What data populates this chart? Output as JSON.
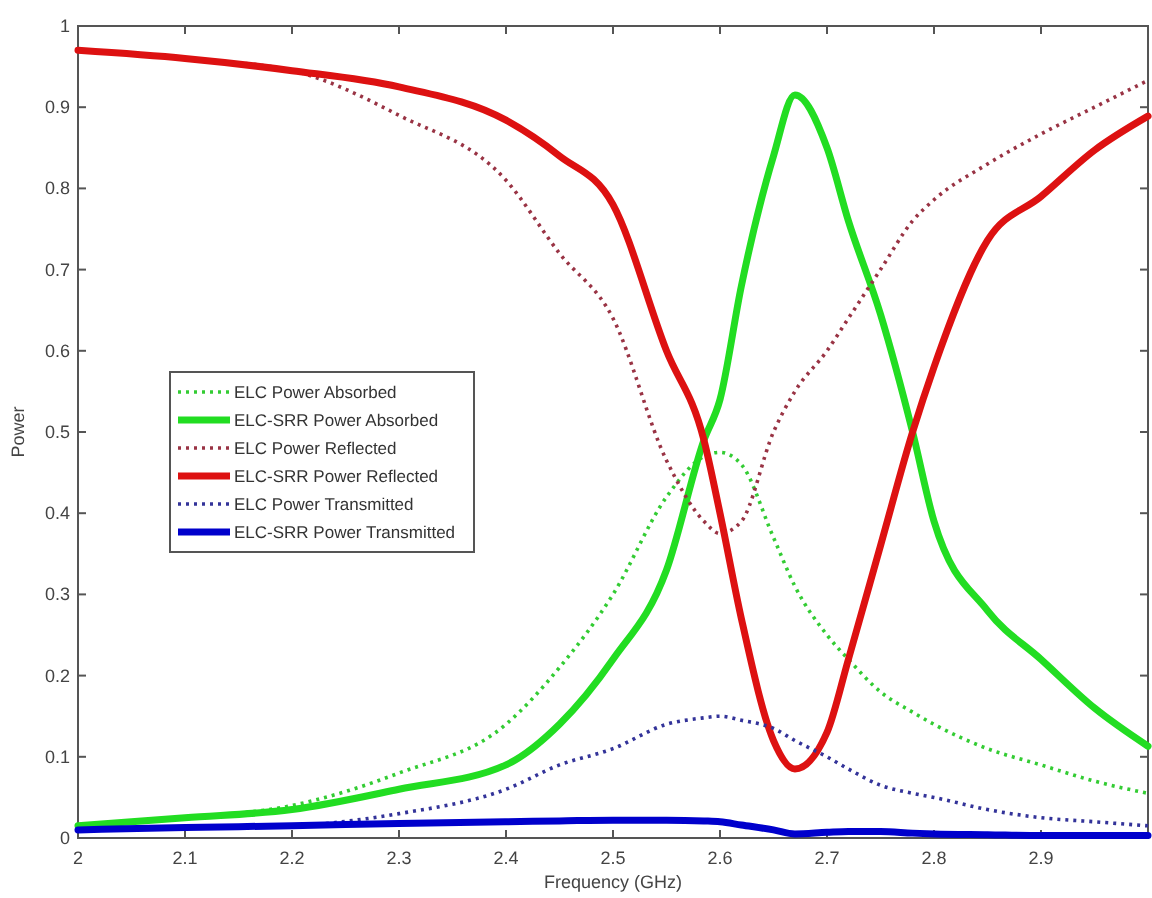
{
  "chart_data": {
    "type": "line",
    "xlabel": "Frequency (GHz)",
    "ylabel": "Power",
    "xlim": [
      2,
      3
    ],
    "ylim": [
      0,
      1
    ],
    "xticks": [
      2,
      2.1,
      2.2,
      2.3,
      2.4,
      2.5,
      2.6,
      2.7,
      2.8,
      2.9
    ],
    "yticks": [
      0,
      0.1,
      0.2,
      0.3,
      0.4,
      0.5,
      0.6,
      0.7,
      0.8,
      0.9,
      1
    ],
    "grid": false,
    "legend": "left",
    "marker": "none",
    "x": [
      2,
      2.1,
      2.2,
      2.3,
      2.4,
      2.45,
      2.5,
      2.55,
      2.585,
      2.6,
      2.62,
      2.65,
      2.67,
      2.7,
      2.72,
      2.75,
      2.78,
      2.8,
      2.85,
      2.9,
      2.95,
      3
    ],
    "series": [
      {
        "name": "ELC Power Absorbed",
        "color": "#33cc33",
        "line_style": "dotted",
        "values": [
          0.015,
          0.025,
          0.04,
          0.08,
          0.14,
          0.21,
          0.3,
          0.42,
          0.47,
          0.475,
          0.46,
          0.37,
          0.31,
          0.25,
          0.22,
          0.18,
          0.155,
          0.14,
          0.11,
          0.09,
          0.07,
          0.055
        ]
      },
      {
        "name": "ELC-SRR Power Absorbed",
        "color": "#22dd22",
        "line_style": "solid",
        "values": [
          0.015,
          0.025,
          0.035,
          0.06,
          0.09,
          0.14,
          0.22,
          0.33,
          0.49,
          0.54,
          0.68,
          0.84,
          0.915,
          0.85,
          0.76,
          0.645,
          0.5,
          0.39,
          0.28,
          0.22,
          0.16,
          0.113
        ]
      },
      {
        "name": "ELC Power Reflected",
        "color": "#993344",
        "line_style": "dotted",
        "values": [
          0.97,
          0.96,
          0.945,
          0.89,
          0.81,
          0.72,
          0.64,
          0.465,
          0.39,
          0.375,
          0.39,
          0.5,
          0.55,
          0.6,
          0.64,
          0.7,
          0.76,
          0.786,
          0.83,
          0.867,
          0.9,
          0.933
        ]
      },
      {
        "name": "ELC-SRR Power Reflected",
        "color": "#dd1111",
        "line_style": "solid",
        "values": [
          0.97,
          0.96,
          0.945,
          0.925,
          0.884,
          0.84,
          0.78,
          0.6,
          0.49,
          0.4,
          0.27,
          0.12,
          0.085,
          0.13,
          0.22,
          0.36,
          0.5,
          0.58,
          0.736,
          0.79,
          0.847,
          0.889
        ]
      },
      {
        "name": "ELC Power Transmitted",
        "color": "#333399",
        "line_style": "dotted",
        "values": [
          0.01,
          0.012,
          0.015,
          0.03,
          0.06,
          0.09,
          0.11,
          0.14,
          0.148,
          0.15,
          0.145,
          0.135,
          0.12,
          0.1,
          0.085,
          0.065,
          0.055,
          0.05,
          0.035,
          0.025,
          0.02,
          0.015
        ]
      },
      {
        "name": "ELC-SRR Power Transmitted",
        "color": "#0000cc",
        "line_style": "solid",
        "values": [
          0.01,
          0.013,
          0.015,
          0.018,
          0.02,
          0.021,
          0.022,
          0.022,
          0.021,
          0.02,
          0.016,
          0.01,
          0.005,
          0.007,
          0.008,
          0.008,
          0.006,
          0.005,
          0.004,
          0.003,
          0.003,
          0.003
        ]
      }
    ]
  }
}
